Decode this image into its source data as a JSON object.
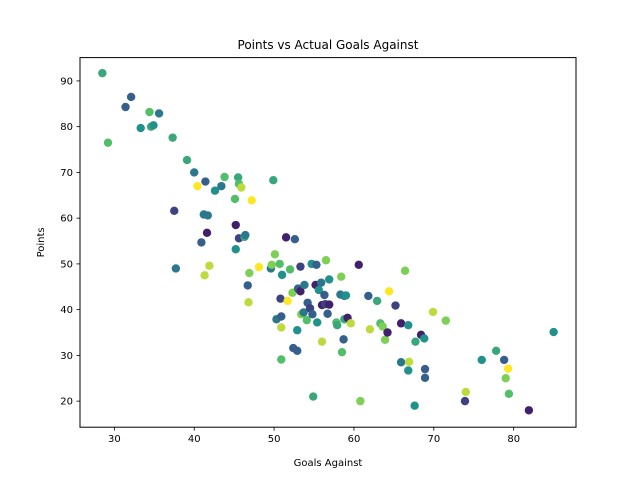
{
  "chart_data": {
    "type": "scatter",
    "title": "Points vs Actual Goals Against",
    "xlabel": "Goals Against",
    "ylabel": "Points",
    "xlim": [
      25.7,
      87.8
    ],
    "ylim": [
      14.3,
      95.1
    ],
    "xticks": [
      30,
      40,
      50,
      60,
      70,
      80
    ],
    "yticks": [
      20,
      30,
      40,
      50,
      60,
      70,
      80,
      90
    ],
    "grid": false,
    "colormap": [
      "#440154",
      "#3b528b",
      "#21918c",
      "#5ec962",
      "#fde725"
    ],
    "series": [
      {
        "points": [
          [
            28.5,
            91.7,
            0.6
          ],
          [
            29.2,
            76.5,
            0.7
          ],
          [
            31.4,
            84.3,
            0.3
          ],
          [
            32.1,
            86.5,
            0.3
          ],
          [
            33.3,
            79.7,
            0.5
          ],
          [
            34.4,
            83.2,
            0.7
          ],
          [
            34.6,
            80.0,
            0.6
          ],
          [
            34.9,
            80.3,
            0.5
          ],
          [
            35.6,
            82.9,
            0.4
          ],
          [
            37.3,
            77.6,
            0.6
          ],
          [
            37.5,
            61.6,
            0.2
          ],
          [
            37.7,
            49.0,
            0.4
          ],
          [
            39.1,
            72.7,
            0.6
          ],
          [
            40.0,
            70.0,
            0.4
          ],
          [
            40.4,
            67.0,
            1.0
          ],
          [
            40.9,
            54.7,
            0.3
          ],
          [
            41.2,
            60.8,
            0.4
          ],
          [
            41.3,
            47.5,
            0.9
          ],
          [
            41.4,
            68.0,
            0.3
          ],
          [
            41.6,
            56.8,
            0.1
          ],
          [
            41.7,
            60.6,
            0.4
          ],
          [
            41.9,
            49.6,
            0.9
          ],
          [
            42.6,
            66.0,
            0.5
          ],
          [
            43.4,
            67.0,
            0.4
          ],
          [
            43.8,
            69.0,
            0.7
          ],
          [
            45.1,
            64.2,
            0.7
          ],
          [
            45.2,
            58.5,
            0.1
          ],
          [
            45.2,
            53.2,
            0.5
          ],
          [
            45.5,
            68.9,
            0.6
          ],
          [
            45.6,
            67.5,
            0.7
          ],
          [
            45.6,
            55.6,
            0.2
          ],
          [
            45.9,
            66.7,
            0.9
          ],
          [
            46.3,
            55.9,
            0.6
          ],
          [
            46.4,
            56.3,
            0.4
          ],
          [
            46.7,
            45.3,
            0.3
          ],
          [
            46.8,
            41.6,
            0.9
          ],
          [
            46.9,
            48.0,
            0.8
          ],
          [
            47.2,
            63.9,
            1.0
          ],
          [
            48.1,
            49.3,
            1.0
          ],
          [
            49.6,
            49.0,
            0.4
          ],
          [
            49.7,
            49.8,
            0.8
          ],
          [
            49.9,
            68.3,
            0.6
          ],
          [
            50.1,
            52.1,
            0.8
          ],
          [
            50.3,
            37.9,
            0.4
          ],
          [
            50.7,
            50.0,
            0.7
          ],
          [
            50.8,
            42.4,
            0.2
          ],
          [
            50.9,
            36.1,
            0.9
          ],
          [
            50.9,
            29.1,
            0.7
          ],
          [
            50.9,
            38.5,
            0.3
          ],
          [
            51.0,
            47.6,
            0.5
          ],
          [
            51.5,
            55.8,
            0.1
          ],
          [
            51.7,
            41.9,
            1.0
          ],
          [
            52.0,
            48.8,
            0.7
          ],
          [
            52.3,
            43.7,
            0.8
          ],
          [
            52.4,
            31.6,
            0.3
          ],
          [
            52.6,
            55.4,
            0.3
          ],
          [
            52.9,
            35.5,
            0.5
          ],
          [
            52.9,
            31.0,
            0.3
          ],
          [
            53.0,
            44.6,
            0.3
          ],
          [
            53.3,
            49.4,
            0.2
          ],
          [
            53.3,
            44.0,
            0.1
          ],
          [
            53.4,
            39.0,
            0.8
          ],
          [
            53.7,
            39.4,
            0.4
          ],
          [
            53.8,
            45.4,
            0.4
          ],
          [
            54.1,
            37.7,
            0.7
          ],
          [
            54.2,
            41.5,
            0.3
          ],
          [
            54.5,
            40.3,
            0.2
          ],
          [
            54.7,
            50.0,
            0.5
          ],
          [
            54.8,
            39.0,
            0.3
          ],
          [
            54.9,
            21.0,
            0.6
          ],
          [
            55.2,
            45.4,
            0.1
          ],
          [
            55.3,
            49.8,
            0.3
          ],
          [
            55.4,
            37.2,
            0.5
          ],
          [
            55.6,
            44.3,
            0.5
          ],
          [
            55.9,
            45.9,
            0.4
          ],
          [
            56.0,
            41.0,
            0.1
          ],
          [
            56.0,
            33.0,
            0.9
          ],
          [
            56.3,
            43.2,
            0.3
          ],
          [
            56.4,
            41.2,
            0.2
          ],
          [
            56.5,
            50.8,
            0.8
          ],
          [
            56.7,
            39.1,
            0.3
          ],
          [
            56.9,
            46.6,
            0.5
          ],
          [
            56.9,
            41.1,
            0.1
          ],
          [
            57.8,
            37.2,
            0.7
          ],
          [
            57.9,
            36.6,
            0.6
          ],
          [
            58.3,
            43.3,
            0.4
          ],
          [
            58.4,
            47.2,
            0.8
          ],
          [
            58.5,
            30.7,
            0.7
          ],
          [
            58.7,
            33.5,
            0.3
          ],
          [
            58.8,
            37.9,
            0.6
          ],
          [
            58.8,
            43.0,
            0.4
          ],
          [
            59.0,
            43.1,
            0.5
          ],
          [
            59.2,
            38.2,
            0.1
          ],
          [
            59.6,
            37.0,
            0.9
          ],
          [
            60.6,
            49.8,
            0.1
          ],
          [
            60.8,
            20.0,
            0.8
          ],
          [
            61.8,
            43.0,
            0.3
          ],
          [
            62.0,
            35.7,
            0.9
          ],
          [
            62.9,
            41.9,
            0.6
          ],
          [
            63.3,
            37.0,
            0.7
          ],
          [
            63.6,
            36.3,
            0.8
          ],
          [
            63.9,
            33.4,
            0.8
          ],
          [
            64.2,
            35.0,
            0.1
          ],
          [
            64.4,
            44.0,
            1.0
          ],
          [
            65.2,
            40.9,
            0.2
          ],
          [
            65.9,
            37.0,
            0.1
          ],
          [
            65.9,
            28.5,
            0.4
          ],
          [
            66.4,
            48.5,
            0.8
          ],
          [
            66.8,
            26.7,
            0.5
          ],
          [
            66.8,
            36.6,
            0.5
          ],
          [
            66.9,
            28.6,
            0.9
          ],
          [
            67.6,
            19.0,
            0.5
          ],
          [
            67.7,
            33.0,
            0.6
          ],
          [
            68.4,
            34.5,
            0.1
          ],
          [
            68.8,
            33.7,
            0.5
          ],
          [
            68.9,
            25.1,
            0.3
          ],
          [
            68.9,
            27.0,
            0.3
          ],
          [
            69.9,
            39.5,
            0.9
          ],
          [
            71.5,
            37.6,
            0.8
          ],
          [
            73.9,
            20.0,
            0.2
          ],
          [
            74.0,
            22.0,
            0.9
          ],
          [
            76.0,
            29.0,
            0.5
          ],
          [
            77.8,
            31.0,
            0.6
          ],
          [
            78.8,
            29.0,
            0.3
          ],
          [
            79.0,
            25.0,
            0.8
          ],
          [
            79.3,
            27.1,
            1.0
          ],
          [
            79.4,
            21.6,
            0.7
          ],
          [
            81.9,
            18.0,
            0.1
          ],
          [
            85.0,
            35.1,
            0.5
          ]
        ]
      }
    ]
  }
}
